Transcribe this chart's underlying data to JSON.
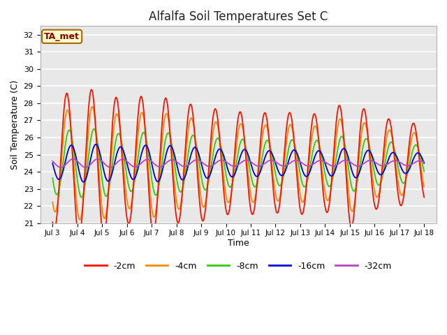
{
  "title": "Alfalfa Soil Temperatures Set C",
  "xlabel": "Time",
  "ylabel": "Soil Temperature (C)",
  "ylim": [
    21.0,
    32.5
  ],
  "yticks": [
    21.0,
    22.0,
    23.0,
    24.0,
    25.0,
    26.0,
    27.0,
    28.0,
    29.0,
    30.0,
    31.0,
    32.0
  ],
  "fig_bg_color": "#ffffff",
  "plot_bg_color": "#e8e8e8",
  "grid_color": "#ffffff",
  "annotation_text": "TA_met",
  "annotation_bg": "#ffffcc",
  "annotation_border": "#aa6600",
  "annotation_text_color": "#880000",
  "series_colors": {
    "-2cm": "#ff1100",
    "-4cm": "#ff8800",
    "-8cm": "#33cc00",
    "-16cm": "#0000dd",
    "-32cm": "#bb44bb"
  },
  "series_linewidths": {
    "-2cm": 1.3,
    "-4cm": 1.3,
    "-8cm": 1.3,
    "-16cm": 1.3,
    "-32cm": 1.3
  },
  "xtick_labels": [
    "Jul 3",
    "Jul 4",
    "Jul 5",
    "Jul 6",
    "Jul 7",
    "Jul 8",
    "Jul 9",
    "Jul 10",
    "Jul 11",
    "Jul 12",
    "Jul 13",
    "Jul 14",
    "Jul 15",
    "Jul 16",
    "Jul 17",
    "Jul 18"
  ],
  "n_days": 16,
  "points_per_day": 48,
  "base_temp": 24.5,
  "amp_2cm": [
    3.8,
    4.3,
    4.3,
    3.5,
    4.2,
    3.5,
    3.4,
    3.0,
    3.0,
    2.9,
    3.0,
    2.8,
    3.8,
    2.7,
    2.5,
    2.2
  ],
  "amp_4cm": [
    2.8,
    3.3,
    3.3,
    2.6,
    3.2,
    2.7,
    2.6,
    2.3,
    2.3,
    2.2,
    2.3,
    2.1,
    2.9,
    2.0,
    1.9,
    1.7
  ],
  "amp_8cm": [
    1.8,
    2.0,
    2.0,
    1.6,
    1.9,
    1.7,
    1.6,
    1.4,
    1.4,
    1.3,
    1.4,
    1.3,
    1.7,
    1.3,
    1.2,
    1.0
  ],
  "amp_16cm": [
    0.9,
    1.1,
    1.1,
    0.9,
    1.1,
    1.0,
    0.9,
    0.8,
    0.8,
    0.7,
    0.8,
    0.7,
    0.9,
    0.7,
    0.6,
    0.6
  ],
  "amp_32cm": [
    0.25,
    0.25,
    0.25,
    0.22,
    0.22,
    0.2,
    0.2,
    0.18,
    0.18,
    0.17,
    0.17,
    0.16,
    0.18,
    0.16,
    0.15,
    0.14
  ],
  "phase_2cm": 0.32,
  "phase_4cm": 0.35,
  "phase_8cm": 0.42,
  "phase_16cm": 0.5,
  "phase_32cm": 0.58,
  "figsize": [
    6.4,
    4.8
  ],
  "dpi": 100
}
